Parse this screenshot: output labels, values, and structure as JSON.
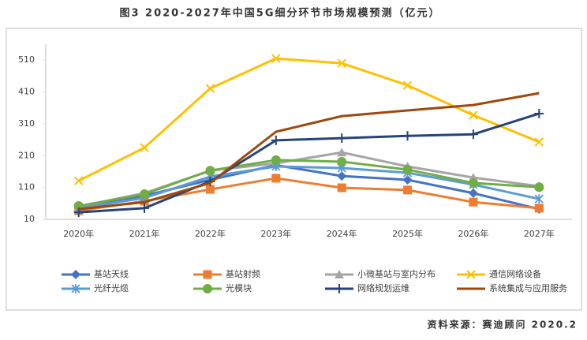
{
  "chart_data": {
    "type": "line",
    "title": "图3 2020-2027年中国5G细分环节市场规模预测（亿元）",
    "source": "资料来源：赛迪顾问 2020.2",
    "categories": [
      "2020年",
      "2021年",
      "2022年",
      "2023年",
      "2024年",
      "2025年",
      "2026年",
      "2027年"
    ],
    "ylim": [
      10,
      560
    ],
    "yticks": [
      10,
      110,
      210,
      310,
      410,
      510
    ],
    "grid": false,
    "series": [
      {
        "name": "基站天线",
        "color": "#4472c4",
        "marker": "diamond",
        "values": [
          47,
          84,
          134,
          180,
          146,
          134,
          92,
          42
        ]
      },
      {
        "name": "基站射频",
        "color": "#ed7d31",
        "marker": "square",
        "values": [
          37,
          67,
          104,
          139,
          109,
          102,
          64,
          45
        ]
      },
      {
        "name": "小微基站与室内分布",
        "color": "#a5a5a5",
        "marker": "triangle",
        "values": [
          50,
          92,
          163,
          186,
          220,
          176,
          141,
          114
        ]
      },
      {
        "name": "通信网络设备",
        "color": "#ffc000",
        "marker": "x",
        "values": [
          131,
          235,
          421,
          515,
          500,
          431,
          337,
          253
        ]
      },
      {
        "name": "光纤光缆",
        "color": "#5b9bd5",
        "marker": "asterisk",
        "values": [
          45,
          77,
          144,
          176,
          171,
          156,
          119,
          74
        ]
      },
      {
        "name": "光模块",
        "color": "#70ad47",
        "marker": "circle",
        "values": [
          52,
          89,
          163,
          196,
          191,
          166,
          124,
          111
        ]
      },
      {
        "name": "网络规划运维",
        "color": "#264478",
        "marker": "plus",
        "values": [
          32,
          45,
          129,
          258,
          265,
          272,
          277,
          342
        ]
      },
      {
        "name": "系统集成与应用服务",
        "color": "#9e480e",
        "marker": "none",
        "values": [
          42,
          64,
          124,
          285,
          334,
          352,
          369,
          406
        ]
      }
    ]
  }
}
